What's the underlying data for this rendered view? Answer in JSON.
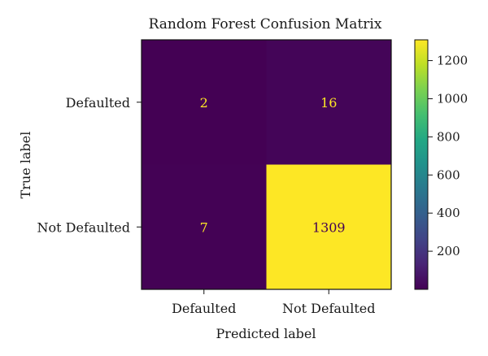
{
  "chart_data": {
    "type": "heatmap",
    "title": "Random Forest Confusion Matrix",
    "xlabel": "Predicted label",
    "ylabel": "True label",
    "x_categories": [
      "Defaulted",
      "Not Defaulted"
    ],
    "y_categories": [
      "Defaulted",
      "Not Defaulted"
    ],
    "values": [
      [
        2,
        16
      ],
      [
        7,
        1309
      ]
    ],
    "colormap": "viridis",
    "colorbar": {
      "range": [
        0,
        1309
      ],
      "ticks": [
        200,
        400,
        600,
        800,
        1000,
        1200
      ]
    },
    "grid": false,
    "colors": {
      "low": "#440154",
      "high": "#fde725",
      "text_on_dark": "#fde725",
      "text_on_light": "#440154"
    }
  }
}
